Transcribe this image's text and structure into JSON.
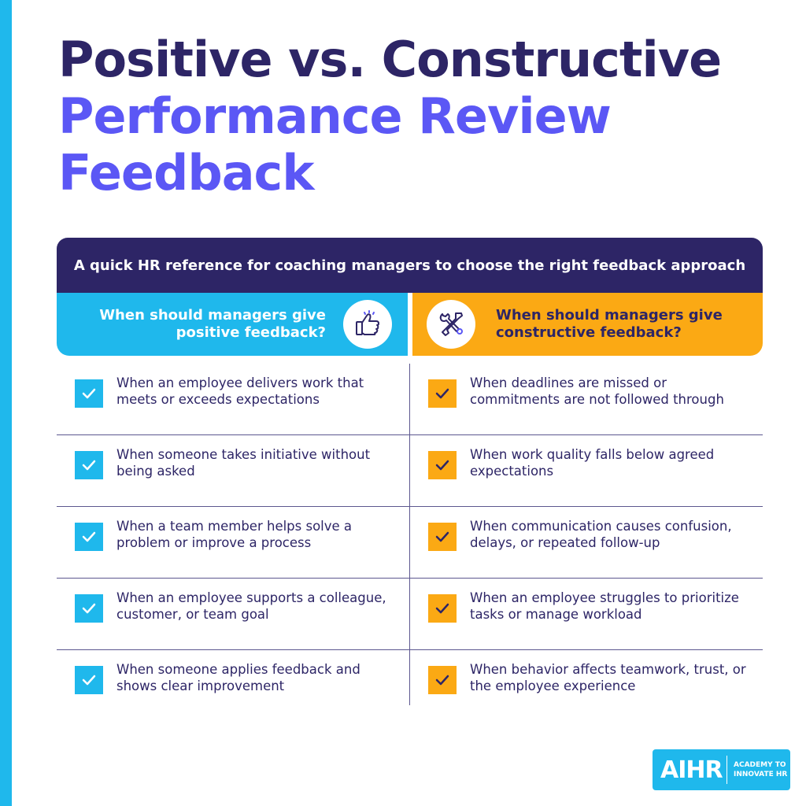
{
  "title": {
    "line1": "Positive vs. Constructive",
    "line2": "Performance Review",
    "line3": "Feedback"
  },
  "banner": "A quick HR reference for coaching managers to choose the right feedback approach",
  "positive": {
    "heading": "When should managers give positive feedback?",
    "icon": "thumbs-up-icon",
    "color": "#1fb8ec",
    "items": [
      "When an employee delivers work that meets or exceeds expectations",
      "When someone takes initiative without being asked",
      "When a team member helps solve a problem or improve a process",
      "When an employee supports a colleague, customer, or team goal",
      "When someone applies feedback and shows clear improvement"
    ]
  },
  "constructive": {
    "heading": "When should managers give constructive feedback?",
    "icon": "tools-icon",
    "color": "#fba914",
    "items": [
      "When deadlines are missed or commitments are not followed through",
      "When work quality falls below agreed expectations",
      "When communication causes confusion, delays, or repeated follow-up",
      "When an employee struggles to prioritize tasks or manage workload",
      "When behavior affects teamwork, trust, or the employee experience"
    ]
  },
  "logo": {
    "mark": "AIHR",
    "tagline_line1": "ACADEMY TO",
    "tagline_line2": "INNOVATE HR"
  },
  "colors": {
    "navy": "#2d2566",
    "purple": "#5b57f5",
    "blue": "#1fb8ec",
    "orange": "#fba914"
  }
}
